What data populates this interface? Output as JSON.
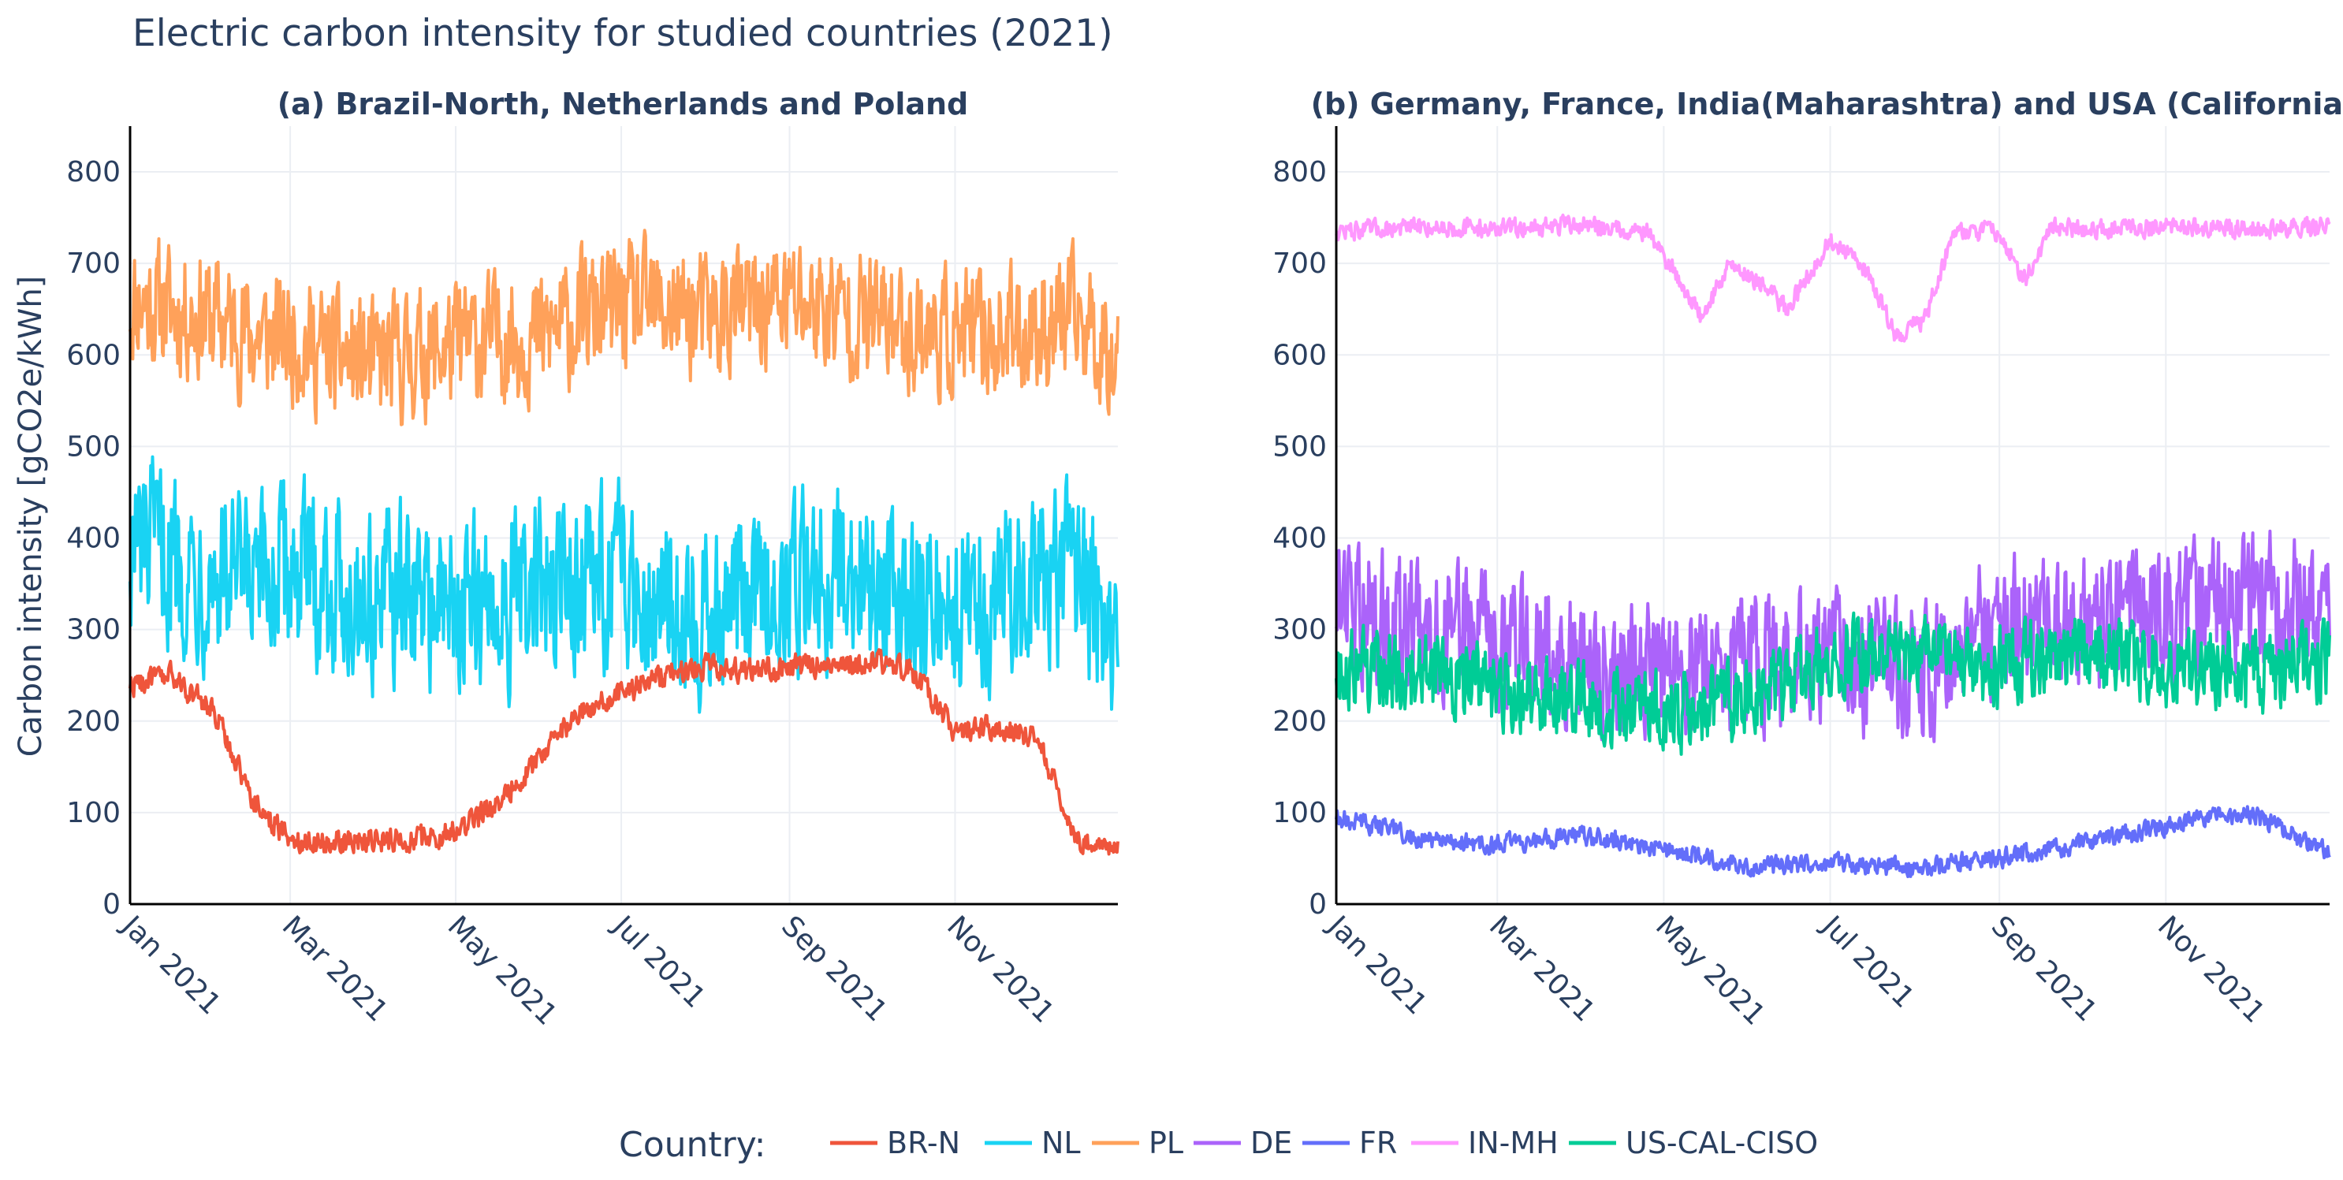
{
  "title": "Electric carbon intensity for studied countries (2021)",
  "chart_data": [
    {
      "type": "line",
      "title": "(a) Brazil-North, Netherlands and Poland",
      "xlabel": "",
      "ylabel": "Carbon intensity [gCO2e/kWh]",
      "ylim": [
        0,
        850
      ],
      "yticks": [
        "0",
        "100",
        "200",
        "300",
        "400",
        "500",
        "600",
        "700",
        "800"
      ],
      "xlim": [
        "2021-01-01",
        "2021-12-31"
      ],
      "xticks": [
        "Jan 2021",
        "Mar 2021",
        "May 2021",
        "Jul 2021",
        "Sep 2021",
        "Nov 2021"
      ],
      "grid": true,
      "series": [
        {
          "name": "PL",
          "color": "#FFA15A",
          "amp": 95,
          "x": [
            "2021-01-01",
            "2021-01-16",
            "2021-02-01",
            "2021-02-16",
            "2021-03-01",
            "2021-03-16",
            "2021-04-01",
            "2021-04-16",
            "2021-05-01",
            "2021-05-16",
            "2021-06-01",
            "2021-06-16",
            "2021-07-01",
            "2021-07-16",
            "2021-08-01",
            "2021-08-16",
            "2021-09-01",
            "2021-09-16",
            "2021-10-01",
            "2021-10-16",
            "2021-11-01",
            "2021-11-16",
            "2021-12-01",
            "2021-12-16",
            "2021-12-31"
          ],
          "values": [
            660,
            650,
            640,
            620,
            620,
            600,
            590,
            600,
            610,
            620,
            620,
            640,
            650,
            650,
            640,
            650,
            660,
            650,
            640,
            630,
            620,
            620,
            630,
            640,
            600
          ]
        },
        {
          "name": "NL",
          "color": "#19D3F3",
          "amp": 130,
          "x": [
            "2021-01-01",
            "2021-01-16",
            "2021-02-01",
            "2021-02-16",
            "2021-03-01",
            "2021-03-16",
            "2021-04-01",
            "2021-04-16",
            "2021-05-01",
            "2021-05-16",
            "2021-06-01",
            "2021-06-16",
            "2021-07-01",
            "2021-07-16",
            "2021-08-01",
            "2021-08-16",
            "2021-09-01",
            "2021-09-16",
            "2021-10-01",
            "2021-10-16",
            "2021-11-01",
            "2021-11-16",
            "2021-12-01",
            "2021-12-16",
            "2021-12-31"
          ],
          "values": [
            390,
            380,
            360,
            340,
            370,
            350,
            330,
            340,
            320,
            330,
            340,
            350,
            360,
            340,
            310,
            330,
            350,
            370,
            350,
            340,
            330,
            340,
            350,
            360,
            280
          ]
        },
        {
          "name": "BR-N",
          "color": "#EF553B",
          "amp": 18,
          "x": [
            "2021-01-01",
            "2021-01-16",
            "2021-02-01",
            "2021-02-16",
            "2021-03-01",
            "2021-03-16",
            "2021-04-01",
            "2021-04-16",
            "2021-05-01",
            "2021-05-16",
            "2021-06-01",
            "2021-06-16",
            "2021-07-01",
            "2021-07-16",
            "2021-08-01",
            "2021-08-16",
            "2021-09-01",
            "2021-09-16",
            "2021-10-01",
            "2021-10-16",
            "2021-11-01",
            "2021-11-16",
            "2021-12-01",
            "2021-12-16",
            "2021-12-31"
          ],
          "values": [
            240,
            250,
            210,
            110,
            70,
            68,
            70,
            70,
            80,
            110,
            160,
            210,
            230,
            250,
            260,
            255,
            260,
            262,
            265,
            255,
            190,
            195,
            180,
            70,
            60
          ]
        }
      ]
    },
    {
      "type": "line",
      "title": "(b) Germany, France, India(Maharashtra) and USA (California)",
      "xlabel": "",
      "ylabel": "",
      "ylim": [
        0,
        850
      ],
      "yticks": [
        "0",
        "100",
        "200",
        "300",
        "400",
        "500",
        "600",
        "700",
        "800"
      ],
      "xlim": [
        "2021-01-01",
        "2021-12-31"
      ],
      "xticks": [
        "Jan 2021",
        "Mar 2021",
        "May 2021",
        "Jul 2021",
        "Sep 2021",
        "Nov 2021"
      ],
      "grid": true,
      "series": [
        {
          "name": "IN-MH",
          "color": "#FF97FF",
          "amp": 14,
          "x": [
            "2021-01-01",
            "2021-02-01",
            "2021-03-01",
            "2021-04-01",
            "2021-04-25",
            "2021-05-05",
            "2021-05-15",
            "2021-05-25",
            "2021-06-05",
            "2021-06-15",
            "2021-07-01",
            "2021-07-15",
            "2021-07-25",
            "2021-08-05",
            "2021-08-15",
            "2021-09-01",
            "2021-09-10",
            "2021-09-20",
            "2021-10-01",
            "2021-11-01",
            "2021-12-01",
            "2021-12-31"
          ],
          "values": [
            735,
            740,
            738,
            742,
            735,
            690,
            640,
            700,
            680,
            650,
            725,
            690,
            620,
            640,
            735,
            735,
            680,
            740,
            738,
            740,
            738,
            740
          ]
        },
        {
          "name": "DE",
          "color": "#AB63FA",
          "amp": 100,
          "x": [
            "2021-01-01",
            "2021-02-01",
            "2021-03-01",
            "2021-04-01",
            "2021-05-01",
            "2021-06-01",
            "2021-07-01",
            "2021-08-01",
            "2021-09-01",
            "2021-10-01",
            "2021-11-01",
            "2021-12-01",
            "2021-12-31"
          ],
          "values": [
            330,
            300,
            290,
            270,
            250,
            270,
            260,
            260,
            300,
            310,
            320,
            330,
            320
          ]
        },
        {
          "name": "US-CAL-CISO",
          "color": "#00CC96",
          "amp": 60,
          "x": [
            "2021-01-01",
            "2021-02-01",
            "2021-03-01",
            "2021-04-01",
            "2021-05-01",
            "2021-06-01",
            "2021-07-01",
            "2021-08-01",
            "2021-09-01",
            "2021-10-01",
            "2021-11-01",
            "2021-12-01",
            "2021-12-31"
          ],
          "values": [
            260,
            250,
            230,
            220,
            210,
            220,
            270,
            280,
            260,
            280,
            260,
            250,
            270
          ]
        },
        {
          "name": "FR",
          "color": "#636EFA",
          "amp": 14,
          "x": [
            "2021-01-01",
            "2021-01-16",
            "2021-02-01",
            "2021-03-01",
            "2021-04-01",
            "2021-05-01",
            "2021-06-01",
            "2021-07-01",
            "2021-08-01",
            "2021-09-01",
            "2021-10-01",
            "2021-11-01",
            "2021-12-01",
            "2021-12-31"
          ],
          "values": [
            95,
            85,
            70,
            65,
            75,
            60,
            40,
            45,
            40,
            50,
            65,
            85,
            100,
            55
          ]
        }
      ]
    }
  ],
  "legend": {
    "title": "Country:",
    "items": [
      {
        "label": "BR-N",
        "color": "#EF553B"
      },
      {
        "label": "NL",
        "color": "#19D3F3"
      },
      {
        "label": "PL",
        "color": "#FFA15A"
      },
      {
        "label": "DE",
        "color": "#AB63FA"
      },
      {
        "label": "FR",
        "color": "#636EFA"
      },
      {
        "label": "IN-MH",
        "color": "#FF97FF"
      },
      {
        "label": "US-CAL-CISO",
        "color": "#00CC96"
      }
    ]
  }
}
